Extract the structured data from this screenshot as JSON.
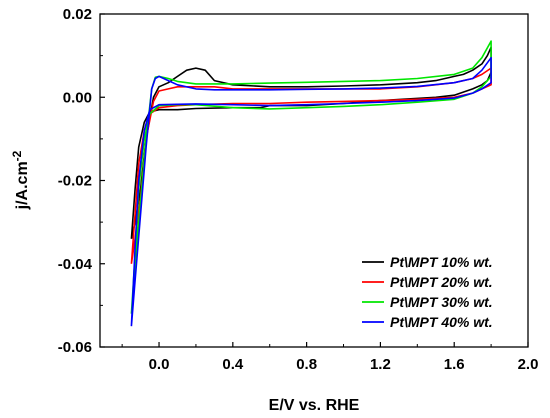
{
  "chart_data": {
    "type": "line",
    "title": "",
    "xlabel": "E/V vs. RHE",
    "ylabel": "j/A.cm",
    "ylabel_exponent": "-2",
    "xlim": [
      -0.32,
      2.0
    ],
    "ylim": [
      -0.06,
      0.02
    ],
    "xticks": [
      "0.0",
      "0.4",
      "0.8",
      "1.2",
      "1.6",
      "2.0"
    ],
    "yticks": [
      "0.02",
      "0.00",
      "-0.02",
      "-0.04",
      "-0.06"
    ],
    "grid": false,
    "legend_position": "bottom-right",
    "series": [
      {
        "name": "Pt\\MPT 10% wt.",
        "color": "#000000",
        "x": [
          -0.15,
          -0.13,
          -0.1,
          -0.07,
          -0.03,
          0.0,
          0.05,
          0.1,
          0.15,
          0.2,
          0.25,
          0.3,
          0.4,
          0.6,
          0.8,
          1.0,
          1.2,
          1.4,
          1.5,
          1.6,
          1.65,
          1.7,
          1.75,
          1.78,
          1.8,
          1.8,
          1.78,
          1.75,
          1.7,
          1.6,
          1.5,
          1.2,
          1.0,
          0.8,
          0.6,
          0.55,
          0.5,
          0.4,
          0.2,
          0.1,
          0.0,
          -0.05,
          -0.08,
          -0.11,
          -0.13,
          -0.15
        ],
        "y": [
          -0.034,
          -0.03,
          -0.022,
          -0.01,
          0.0,
          0.0025,
          0.0035,
          0.005,
          0.0065,
          0.007,
          0.0065,
          0.004,
          0.003,
          0.0025,
          0.0025,
          0.0027,
          0.003,
          0.0035,
          0.004,
          0.005,
          0.0055,
          0.0065,
          0.008,
          0.01,
          0.012,
          0.006,
          0.004,
          0.003,
          0.002,
          0.0005,
          0.0,
          -0.0008,
          -0.0015,
          -0.002,
          -0.002,
          -0.0025,
          -0.0025,
          -0.0025,
          -0.0027,
          -0.003,
          -0.003,
          -0.0035,
          -0.006,
          -0.012,
          -0.022,
          -0.034
        ]
      },
      {
        "name": "Pt\\MPT 20% wt.",
        "color": "#ff0000",
        "x": [
          -0.15,
          -0.13,
          -0.1,
          -0.07,
          -0.03,
          0.0,
          0.05,
          0.1,
          0.2,
          0.3,
          0.4,
          0.6,
          0.8,
          1.0,
          1.2,
          1.4,
          1.6,
          1.7,
          1.75,
          1.8,
          1.8,
          1.75,
          1.7,
          1.6,
          1.4,
          1.2,
          1.0,
          0.8,
          0.6,
          0.4,
          0.2,
          0.1,
          0.0,
          -0.05,
          -0.08,
          -0.11,
          -0.13,
          -0.15
        ],
        "y": [
          -0.04,
          -0.034,
          -0.024,
          -0.01,
          -0.001,
          0.0015,
          0.002,
          0.0025,
          0.0025,
          0.0025,
          0.002,
          0.002,
          0.002,
          0.002,
          0.002,
          0.0025,
          0.0035,
          0.0045,
          0.0055,
          0.007,
          0.003,
          0.002,
          0.001,
          0.0,
          -0.0005,
          -0.0008,
          -0.001,
          -0.0012,
          -0.0015,
          -0.0015,
          -0.0018,
          -0.002,
          -0.0025,
          -0.004,
          -0.008,
          -0.016,
          -0.028,
          -0.04
        ]
      },
      {
        "name": "Pt\\MPT 30% wt.",
        "color": "#00e600",
        "x": [
          -0.15,
          -0.13,
          -0.1,
          -0.07,
          -0.04,
          -0.02,
          0.0,
          0.05,
          0.1,
          0.2,
          0.3,
          0.4,
          0.6,
          0.8,
          1.0,
          1.2,
          1.4,
          1.6,
          1.7,
          1.75,
          1.8,
          1.8,
          1.75,
          1.7,
          1.6,
          1.4,
          1.2,
          1.0,
          0.8,
          0.6,
          0.4,
          0.2,
          0.1,
          0.0,
          -0.05,
          -0.08,
          -0.11,
          -0.13,
          -0.15
        ],
        "y": [
          -0.052,
          -0.04,
          -0.025,
          -0.01,
          0.002,
          0.0048,
          0.005,
          0.0045,
          0.0038,
          0.0032,
          0.0032,
          0.0032,
          0.0034,
          0.0036,
          0.0038,
          0.004,
          0.0045,
          0.0055,
          0.007,
          0.0095,
          0.0135,
          0.005,
          0.0025,
          0.001,
          -0.0005,
          -0.0012,
          -0.0018,
          -0.0022,
          -0.0025,
          -0.0028,
          -0.0025,
          -0.0018,
          -0.0018,
          -0.002,
          -0.004,
          -0.01,
          -0.022,
          -0.038,
          -0.052
        ]
      },
      {
        "name": "Pt\\MPT 40% wt.",
        "color": "#0000ff",
        "x": [
          -0.15,
          -0.13,
          -0.1,
          -0.07,
          -0.04,
          -0.02,
          0.0,
          0.05,
          0.1,
          0.2,
          0.3,
          0.4,
          0.6,
          0.8,
          1.0,
          1.2,
          1.4,
          1.6,
          1.7,
          1.75,
          1.8,
          1.8,
          1.75,
          1.7,
          1.6,
          1.4,
          1.2,
          1.0,
          0.8,
          0.6,
          0.4,
          0.2,
          0.1,
          0.0,
          -0.05,
          -0.08,
          -0.11,
          -0.13,
          -0.15
        ],
        "y": [
          -0.055,
          -0.044,
          -0.028,
          -0.012,
          0.002,
          0.0045,
          0.005,
          0.004,
          0.003,
          0.002,
          0.0018,
          0.0018,
          0.0018,
          0.0019,
          0.002,
          0.0022,
          0.0026,
          0.0035,
          0.0045,
          0.0065,
          0.0095,
          0.0035,
          0.002,
          0.001,
          -0.0002,
          -0.0008,
          -0.0012,
          -0.0015,
          -0.0018,
          -0.002,
          -0.0018,
          -0.0016,
          -0.0017,
          -0.0018,
          -0.003,
          -0.008,
          -0.02,
          -0.036,
          -0.055
        ]
      }
    ]
  }
}
